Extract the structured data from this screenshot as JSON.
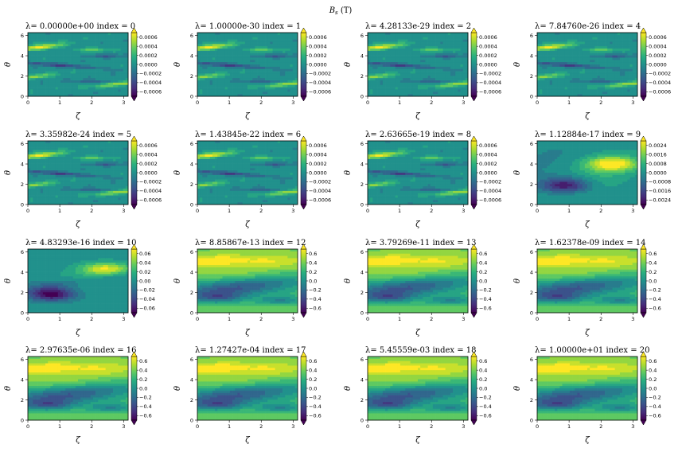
{
  "figure": {
    "suptitle": "B",
    "suptitle_sub": "s",
    "suptitle_unit": " (T)"
  },
  "chart_data": {
    "type": "heatmap",
    "xlabel": "ζ",
    "ylabel": "θ",
    "xticks": [
      "0",
      "1",
      "2",
      "3"
    ],
    "yticks": [
      "0",
      "2",
      "4",
      "6"
    ],
    "xlim": [
      0,
      3.14
    ],
    "ylim": [
      0,
      6.28
    ],
    "colormap": "viridis",
    "colormap_stops": [
      "#440154",
      "#472d7b",
      "#3b528b",
      "#2c728e",
      "#21918c",
      "#28ae80",
      "#5ec962",
      "#addc30",
      "#fde725"
    ],
    "panels": [
      {
        "title": "λ=  0.00000e+00 index = 0",
        "pattern": "small",
        "cbar_ticks": [
          "0.0006",
          "0.0004",
          "0.0002",
          "0.0000",
          "−0.0002",
          "−0.0004",
          "−0.0006"
        ],
        "vmin": -0.0007,
        "vmax": 0.0007
      },
      {
        "title": "λ=  1.00000e-30 index = 1",
        "pattern": "small",
        "cbar_ticks": [
          "0.0006",
          "0.0004",
          "0.0002",
          "0.0000",
          "−0.0002",
          "−0.0004",
          "−0.0006"
        ],
        "vmin": -0.0007,
        "vmax": 0.0007
      },
      {
        "title": "λ=  4.28133e-29 index = 2",
        "pattern": "small",
        "cbar_ticks": [
          "0.0006",
          "0.0004",
          "0.0002",
          "0.0000",
          "−0.0002",
          "−0.0004",
          "−0.0006"
        ],
        "vmin": -0.0007,
        "vmax": 0.0007
      },
      {
        "title": "λ=  7.84760e-26 index = 4",
        "pattern": "small",
        "cbar_ticks": [
          "0.0006",
          "0.0004",
          "0.0002",
          "0.0000",
          "−0.0002",
          "−0.0004",
          "−0.0006"
        ],
        "vmin": -0.0007,
        "vmax": 0.0007
      },
      {
        "title": "λ=  3.35982e-24 index = 5",
        "pattern": "small",
        "cbar_ticks": [
          "0.0006",
          "0.0004",
          "0.0002",
          "0.0000",
          "−0.0002",
          "−0.0004",
          "−0.0006"
        ],
        "vmin": -0.0007,
        "vmax": 0.0007
      },
      {
        "title": "λ=  1.43845e-22 index = 6",
        "pattern": "small",
        "cbar_ticks": [
          "0.0006",
          "0.0004",
          "0.0002",
          "0.0000",
          "−0.0002",
          "−0.0004",
          "−0.0006"
        ],
        "vmin": -0.0007,
        "vmax": 0.0007
      },
      {
        "title": "λ=  2.63665e-19 index = 8",
        "pattern": "small",
        "cbar_ticks": [
          "0.0006",
          "0.0004",
          "0.0002",
          "0.0000",
          "−0.0002",
          "−0.0004",
          "−0.0006"
        ],
        "vmin": -0.0007,
        "vmax": 0.0007
      },
      {
        "title": "λ=  1.12884e-17 index = 9",
        "pattern": "diag",
        "cbar_ticks": [
          "0.0024",
          "0.0016",
          "0.0008",
          "0.0000",
          "−0.0008",
          "−0.0016",
          "−0.0024"
        ],
        "vmin": -0.0028,
        "vmax": 0.0028
      },
      {
        "title": "λ=  4.83293e-16 index = 10",
        "pattern": "diag2",
        "cbar_ticks": [
          "0.06",
          "0.04",
          "0.02",
          "0.00",
          "−0.02",
          "−0.04",
          "−0.06"
        ],
        "vmin": -0.07,
        "vmax": 0.07
      },
      {
        "title": "λ=  8.85867e-13 index = 12",
        "pattern": "large",
        "cbar_ticks": [
          "0.6",
          "0.4",
          "0.2",
          "0.0",
          "−0.2",
          "−0.4",
          "−0.6"
        ],
        "vmin": -0.7,
        "vmax": 0.7
      },
      {
        "title": "λ=  3.79269e-11 index = 13",
        "pattern": "large",
        "cbar_ticks": [
          "0.6",
          "0.4",
          "0.2",
          "0.0",
          "−0.2",
          "−0.4",
          "−0.6"
        ],
        "vmin": -0.7,
        "vmax": 0.7
      },
      {
        "title": "λ=  1.62378e-09 index = 14",
        "pattern": "large",
        "cbar_ticks": [
          "0.6",
          "0.4",
          "0.2",
          "0.0",
          "−0.2",
          "−0.4",
          "−0.6"
        ],
        "vmin": -0.7,
        "vmax": 0.7
      },
      {
        "title": "λ=  2.97635e-06 index = 16",
        "pattern": "large",
        "cbar_ticks": [
          "0.6",
          "0.4",
          "0.2",
          "0.0",
          "−0.2",
          "−0.4",
          "−0.6"
        ],
        "vmin": -0.7,
        "vmax": 0.7
      },
      {
        "title": "λ=  1.27427e-04 index = 17",
        "pattern": "large",
        "cbar_ticks": [
          "0.6",
          "0.4",
          "0.2",
          "0.0",
          "−0.2",
          "−0.4",
          "−0.6"
        ],
        "vmin": -0.7,
        "vmax": 0.7
      },
      {
        "title": "λ=  5.45559e-03 index = 18",
        "pattern": "large",
        "cbar_ticks": [
          "0.6",
          "0.4",
          "0.2",
          "0.0",
          "−0.2",
          "−0.4",
          "−0.6"
        ],
        "vmin": -0.7,
        "vmax": 0.7
      },
      {
        "title": "λ=  1.00000e+01 index = 20",
        "pattern": "large",
        "cbar_ticks": [
          "0.6",
          "0.4",
          "0.2",
          "0.0",
          "−0.2",
          "−0.4",
          "−0.6"
        ],
        "vmin": -0.7,
        "vmax": 0.7
      }
    ]
  }
}
